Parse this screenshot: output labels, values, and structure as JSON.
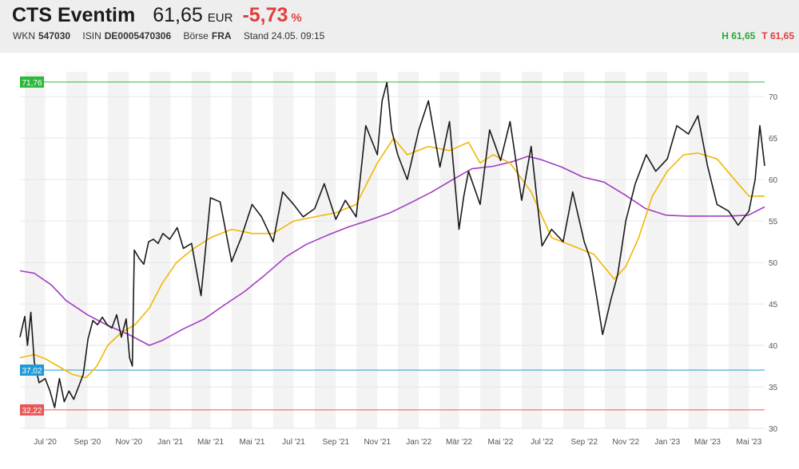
{
  "header": {
    "name": "CTS Eventim",
    "price": "61,65",
    "currency": "EUR",
    "change": "-5,73",
    "change_unit": "%",
    "wkn_label": "WKN",
    "wkn": "547030",
    "isin_label": "ISIN",
    "isin": "DE0005470306",
    "exchange_label": "Börse",
    "exchange": "FRA",
    "stand": "Stand 24.05. 09:15",
    "high": "H 61,65",
    "low": "T 61,65"
  },
  "colors": {
    "price_line": "#1a1a1a",
    "ma_short": "#f2b705",
    "ma_long": "#a23dc1",
    "high_level": "#2db83d",
    "current_level": "#1e9ad6",
    "low_level": "#e85656"
  },
  "chart_data": {
    "type": "line",
    "ylim": [
      30,
      73
    ],
    "y_ticks": [
      30,
      35,
      40,
      45,
      50,
      55,
      60,
      65,
      70
    ],
    "x_ticks": [
      "Jul '20",
      "Sep '20",
      "Nov '20",
      "Jan '21",
      "Mär '21",
      "Mai '21",
      "Jul '21",
      "Sep '21",
      "Nov '21",
      "Jan '22",
      "Mär '22",
      "Mai '22",
      "Jul '22",
      "Sep '22",
      "Nov '22",
      "Jan '23",
      "Mär '23",
      "Mai '23"
    ],
    "x_start": "2020-05-25",
    "x_end": "2023-05-24",
    "levels": [
      {
        "label": "71,76",
        "value": 71.76,
        "color": "#2db83d"
      },
      {
        "label": "37,02",
        "value": 37.02,
        "color": "#1e9ad6"
      },
      {
        "label": "32,22",
        "value": 32.22,
        "color": "#e85656"
      }
    ],
    "series": [
      {
        "color": "#1a1a1a",
        "x": [
          "2020-05-25",
          "2020-06-01",
          "2020-06-05",
          "2020-06-10",
          "2020-06-15",
          "2020-06-22",
          "2020-07-01",
          "2020-07-08",
          "2020-07-15",
          "2020-07-22",
          "2020-07-29",
          "2020-08-05",
          "2020-08-12",
          "2020-08-19",
          "2020-08-26",
          "2020-09-02",
          "2020-09-09",
          "2020-09-16",
          "2020-09-23",
          "2020-09-30",
          "2020-10-07",
          "2020-10-14",
          "2020-10-21",
          "2020-10-28",
          "2020-11-02",
          "2020-11-06",
          "2020-11-09",
          "2020-11-16",
          "2020-11-23",
          "2020-11-30",
          "2020-12-07",
          "2020-12-14",
          "2020-12-21",
          "2020-12-31",
          "2021-01-11",
          "2021-01-20",
          "2021-02-01",
          "2021-02-15",
          "2021-03-01",
          "2021-03-15",
          "2021-04-01",
          "2021-04-15",
          "2021-05-01",
          "2021-05-15",
          "2021-06-01",
          "2021-06-15",
          "2021-07-01",
          "2021-07-15",
          "2021-08-01",
          "2021-08-15",
          "2021-09-01",
          "2021-09-15",
          "2021-10-01",
          "2021-10-15",
          "2021-11-01",
          "2021-11-08",
          "2021-11-15",
          "2021-11-22",
          "2021-12-01",
          "2021-12-15",
          "2022-01-01",
          "2022-01-15",
          "2022-02-01",
          "2022-02-15",
          "2022-03-01",
          "2022-03-08",
          "2022-03-15",
          "2022-04-01",
          "2022-04-15",
          "2022-05-01",
          "2022-05-15",
          "2022-06-01",
          "2022-06-15",
          "2022-07-01",
          "2022-07-15",
          "2022-08-01",
          "2022-08-15",
          "2022-09-01",
          "2022-09-10",
          "2022-09-20",
          "2022-09-28",
          "2022-10-10",
          "2022-10-20",
          "2022-11-01",
          "2022-11-15",
          "2022-12-01",
          "2022-12-15",
          "2023-01-01",
          "2023-01-15",
          "2023-02-01",
          "2023-02-15",
          "2023-03-01",
          "2023-03-15",
          "2023-04-01",
          "2023-04-15",
          "2023-05-01",
          "2023-05-10",
          "2023-05-17",
          "2023-05-24"
        ],
        "values": [
          41,
          43.5,
          40,
          44,
          38,
          35.5,
          36,
          34.5,
          32.5,
          36,
          33.2,
          34.5,
          33.5,
          35,
          36.5,
          40.8,
          43,
          42.5,
          43.4,
          42.5,
          42.1,
          43.7,
          41,
          43.2,
          38.5,
          37.5,
          51.5,
          50.5,
          49.8,
          52.5,
          52.8,
          52.3,
          53.5,
          52.8,
          54.2,
          51.7,
          52.3,
          46,
          57.8,
          57.3,
          50.1,
          53,
          57,
          55.5,
          52.5,
          58.5,
          57,
          55.5,
          56.5,
          59.5,
          55.2,
          57.5,
          55.5,
          66.5,
          63,
          69.5,
          71.7,
          66,
          63,
          60,
          66,
          69.5,
          61.5,
          67,
          54,
          58,
          61,
          57,
          66,
          62.3,
          67,
          57.5,
          64,
          52,
          54,
          52.5,
          58.5,
          52.5,
          50.4,
          45.5,
          41.3,
          45.5,
          48.5,
          55,
          59.5,
          63,
          61,
          62.5,
          66.5,
          65.5,
          67.7,
          61.7,
          57,
          56.2,
          54.5,
          56.2,
          60,
          66.5,
          61.65
        ]
      },
      {
        "color": "#f2b705",
        "x": [
          "2020-05-25",
          "2020-06-15",
          "2020-07-01",
          "2020-07-20",
          "2020-08-10",
          "2020-08-30",
          "2020-09-15",
          "2020-10-01",
          "2020-10-20",
          "2020-11-10",
          "2020-12-01",
          "2020-12-20",
          "2021-01-10",
          "2021-02-01",
          "2021-03-01",
          "2021-04-01",
          "2021-05-01",
          "2021-06-01",
          "2021-07-01",
          "2021-08-01",
          "2021-09-01",
          "2021-10-01",
          "2021-11-01",
          "2021-11-25",
          "2021-12-15",
          "2022-01-15",
          "2022-02-15",
          "2022-03-15",
          "2022-04-01",
          "2022-04-20",
          "2022-05-15",
          "2022-06-15",
          "2022-07-15",
          "2022-08-15",
          "2022-09-15",
          "2022-10-15",
          "2022-11-01",
          "2022-11-20",
          "2022-12-10",
          "2023-01-01",
          "2023-01-25",
          "2023-02-15",
          "2023-03-15",
          "2023-04-15",
          "2023-05-01",
          "2023-05-24"
        ],
        "values": [
          38.5,
          38.9,
          38.4,
          37.5,
          36.5,
          36.1,
          37.5,
          40,
          41.5,
          42.5,
          44.5,
          47.5,
          50,
          51.5,
          53,
          54,
          53.5,
          53.5,
          55,
          55.5,
          56,
          57,
          62,
          65,
          63,
          64,
          63.5,
          64.5,
          62,
          63,
          62,
          58.5,
          53,
          52,
          51,
          48,
          49.5,
          53,
          58,
          61,
          63,
          63.2,
          62.5,
          59.5,
          58,
          58
        ]
      },
      {
        "color": "#a23dc1",
        "x": [
          "2020-05-25",
          "2020-06-15",
          "2020-07-10",
          "2020-08-01",
          "2020-09-01",
          "2020-10-01",
          "2020-11-01",
          "2020-12-01",
          "2020-12-20",
          "2021-01-20",
          "2021-02-20",
          "2021-03-20",
          "2021-04-20",
          "2021-05-20",
          "2021-06-20",
          "2021-07-20",
          "2021-08-20",
          "2021-09-20",
          "2021-10-20",
          "2021-11-20",
          "2021-12-20",
          "2022-01-20",
          "2022-02-20",
          "2022-03-20",
          "2022-04-20",
          "2022-05-20",
          "2022-06-10",
          "2022-06-30",
          "2022-07-30",
          "2022-08-30",
          "2022-09-30",
          "2022-10-30",
          "2022-11-30",
          "2022-12-30",
          "2023-01-30",
          "2023-02-28",
          "2023-03-30",
          "2023-04-30",
          "2023-05-24"
        ],
        "values": [
          49,
          48.7,
          47.3,
          45.4,
          43.7,
          42.4,
          41.3,
          40,
          40.6,
          42,
          43.2,
          44.8,
          46.5,
          48.5,
          50.7,
          52.2,
          53.3,
          54.3,
          55.1,
          56,
          57.2,
          58.5,
          60,
          61.3,
          61.6,
          62.2,
          62.8,
          62.4,
          61.5,
          60.3,
          59.7,
          58.2,
          56.5,
          55.7,
          55.6,
          55.6,
          55.6,
          55.7,
          56.7
        ]
      }
    ]
  }
}
